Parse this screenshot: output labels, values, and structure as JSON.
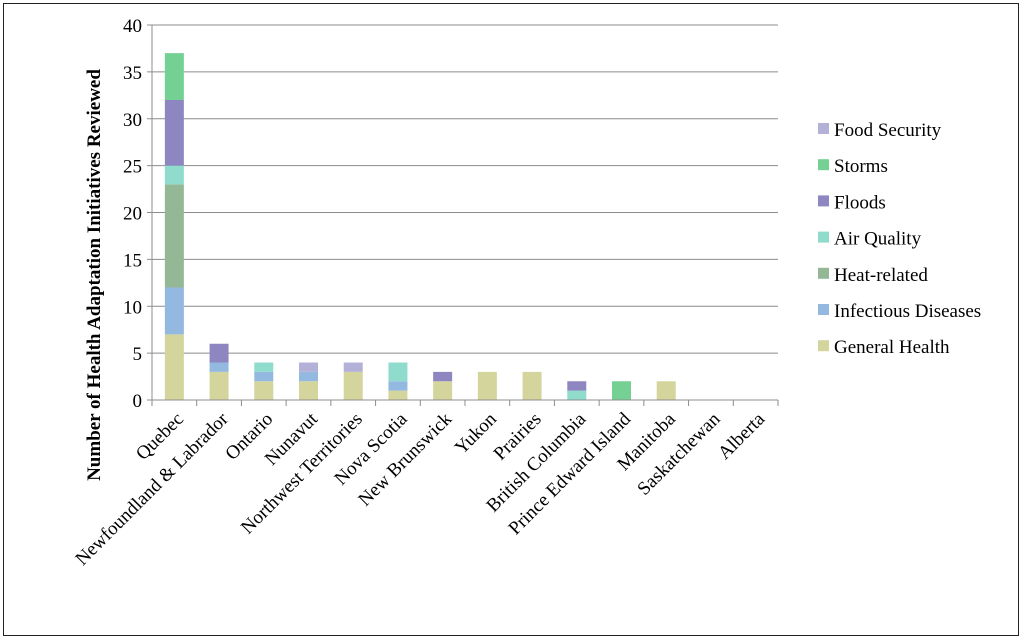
{
  "chart_data": {
    "type": "bar",
    "stacked": true,
    "ylabel": "Number of Health Adaptation Initiatives Reviewed",
    "xlabel": "",
    "ylim": [
      0,
      40
    ],
    "yticks": [
      0,
      5,
      10,
      15,
      20,
      25,
      30,
      35,
      40
    ],
    "grid": true,
    "legend_position": "right",
    "categories": [
      "Quebec",
      "Newfoundland & Labrador",
      "Ontario",
      "Nunavut",
      "Northwest Territories",
      "Nova Scotia",
      "New Brunswick",
      "Yukon",
      "Prairies",
      "British Columbia",
      "Prince Edward Island",
      "Manitoba",
      "Saskatchewan",
      "Alberta"
    ],
    "series": [
      {
        "name": "General Health",
        "color": "#d3d59d",
        "values": [
          7,
          3,
          2,
          2,
          3,
          1,
          2,
          3,
          3,
          0,
          0,
          2,
          0,
          0
        ]
      },
      {
        "name": "Infectious Diseases",
        "color": "#93b9e0",
        "values": [
          5,
          1,
          1,
          1,
          0,
          1,
          0,
          0,
          0,
          0,
          0,
          0,
          0,
          0
        ]
      },
      {
        "name": "Heat-related",
        "color": "#94b896",
        "values": [
          11,
          0,
          0,
          0,
          0,
          0,
          0,
          0,
          0,
          0,
          0,
          0,
          0,
          0
        ]
      },
      {
        "name": "Air Quality",
        "color": "#8fdccc",
        "values": [
          2,
          0,
          1,
          0,
          0,
          2,
          0,
          0,
          0,
          1,
          0,
          0,
          0,
          0
        ]
      },
      {
        "name": "Floods",
        "color": "#8d86c1",
        "values": [
          7,
          2,
          0,
          0,
          0,
          0,
          1,
          0,
          0,
          1,
          0,
          0,
          0,
          0
        ]
      },
      {
        "name": "Storms",
        "color": "#74d193",
        "values": [
          5,
          0,
          0,
          0,
          0,
          0,
          0,
          0,
          0,
          0,
          2,
          0,
          0,
          0
        ]
      },
      {
        "name": "Food Security",
        "color": "#b4b1d9",
        "values": [
          0,
          0,
          0,
          1,
          1,
          0,
          0,
          0,
          0,
          0,
          0,
          0,
          0,
          0
        ]
      }
    ]
  }
}
